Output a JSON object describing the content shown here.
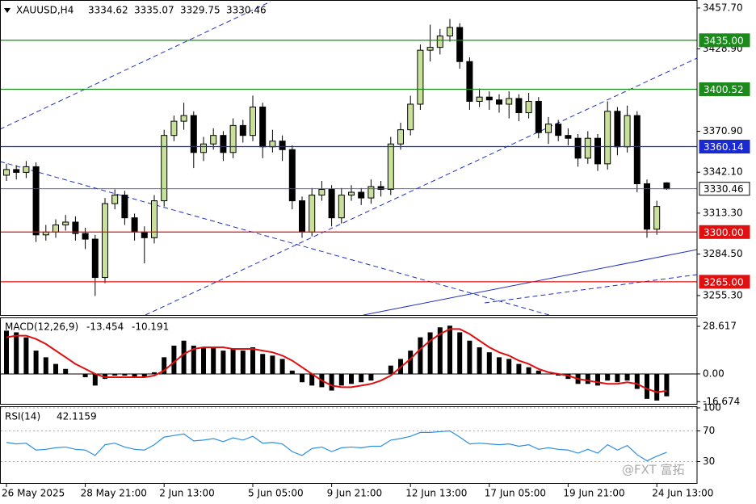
{
  "header": {
    "symbol": "XAUUSD,H4"
  },
  "watermark": "@FXT 富拓",
  "chart_data": [
    {
      "type": "candlestick",
      "categories": [
        "26 May 2025",
        null,
        null,
        null,
        null,
        null,
        null,
        null,
        "28 May 21:00",
        null,
        null,
        null,
        null,
        null,
        null,
        null,
        "2 Jun 13:00",
        null,
        null,
        null,
        null,
        null,
        null,
        null,
        null,
        "5 Jun 05:00",
        null,
        null,
        null,
        null,
        null,
        null,
        null,
        "9 Jun 21:00",
        null,
        null,
        null,
        null,
        null,
        null,
        null,
        "12 Jun 13:00",
        null,
        null,
        null,
        null,
        null,
        null,
        null,
        "17 Jun 05:00",
        null,
        null,
        null,
        null,
        null,
        null,
        null,
        "19 Jun 21:00",
        null,
        null,
        null,
        null,
        null,
        null,
        null,
        null,
        "24 Jun 13:00",
        null
      ],
      "open": [
        3340,
        3344,
        3342,
        3346,
        3298,
        3300,
        3305,
        3307,
        3299,
        3295,
        3268,
        3320,
        3326,
        3310,
        3300,
        3296,
        3322,
        3368,
        3378,
        3382,
        3356,
        3362,
        3368,
        3356,
        3375,
        3368,
        3388,
        3360,
        3364,
        3358,
        3322,
        3300,
        3326,
        3330,
        3310,
        3326,
        3328,
        3324,
        3332,
        3330,
        3362,
        3372,
        3390,
        3428,
        3430,
        3438,
        3444,
        3420,
        3392,
        3395,
        3393,
        3390,
        3394,
        3384,
        3392,
        3370,
        3376,
        3368,
        3366,
        3352,
        3366,
        3348,
        3385,
        3360,
        3382,
        3334,
        3302,
        3334.62
      ],
      "high": [
        3348,
        3347,
        3350,
        3349,
        3305,
        3309,
        3312,
        3311,
        3303,
        3298,
        3324,
        3330,
        3329,
        3313,
        3304,
        3326,
        3372,
        3382,
        3391,
        3385,
        3367,
        3373,
        3371,
        3380,
        3379,
        3396,
        3391,
        3372,
        3368,
        3361,
        3325,
        3331,
        3336,
        3333,
        3331,
        3333,
        3331,
        3337,
        3336,
        3367,
        3377,
        3396,
        3432,
        3446,
        3443,
        3450,
        3447,
        3423,
        3401,
        3399,
        3397,
        3399,
        3397,
        3398,
        3395,
        3381,
        3379,
        3373,
        3369,
        3371,
        3369,
        3392,
        3388,
        3389,
        3385,
        3337,
        3322,
        3335.07
      ],
      "low": [
        3336,
        3337,
        3338,
        3293,
        3294,
        3296,
        3301,
        3294,
        3288,
        3255,
        3264,
        3316,
        3305,
        3294,
        3278,
        3292,
        3318,
        3364,
        3372,
        3345,
        3350,
        3358,
        3350,
        3352,
        3363,
        3364,
        3352,
        3356,
        3350,
        3316,
        3296,
        3297,
        3322,
        3304,
        3306,
        3322,
        3319,
        3320,
        3325,
        3326,
        3358,
        3368,
        3386,
        3420,
        3425,
        3434,
        3415,
        3386,
        3388,
        3386,
        3384,
        3380,
        3378,
        3380,
        3366,
        3362,
        3364,
        3361,
        3346,
        3348,
        3343,
        3344,
        3354,
        3356,
        3328,
        3296,
        3298,
        3329.75
      ],
      "close": [
        3344,
        3342,
        3346,
        3298,
        3300,
        3305,
        3307,
        3299,
        3295,
        3268,
        3320,
        3326,
        3310,
        3300,
        3296,
        3322,
        3368,
        3378,
        3382,
        3356,
        3362,
        3368,
        3356,
        3375,
        3368,
        3388,
        3360,
        3364,
        3358,
        3322,
        3300,
        3326,
        3330,
        3310,
        3326,
        3328,
        3324,
        3332,
        3330,
        3362,
        3372,
        3390,
        3428,
        3430,
        3438,
        3444,
        3420,
        3392,
        3395,
        3393,
        3390,
        3394,
        3384,
        3392,
        3370,
        3376,
        3368,
        3366,
        3352,
        3366,
        3348,
        3385,
        3360,
        3382,
        3334,
        3302,
        3318,
        3330.46
      ],
      "up_color": "#c9e09a",
      "down_color": "#000000",
      "ylim": [
        3241.6,
        3462.2
      ],
      "yticks": [
        {
          "value": 3457.7,
          "label": "3457.70"
        },
        {
          "value": 3428.9,
          "label": "3428.90"
        },
        {
          "value": 3370.9,
          "label": "3370.90"
        },
        {
          "value": 3342.1,
          "label": "3342.10"
        },
        {
          "value": 3313.3,
          "label": "3313.30"
        },
        {
          "value": 3284.5,
          "label": "3284.50"
        },
        {
          "value": 3255.3,
          "label": "3255.30"
        }
      ],
      "levels": [
        {
          "value": 3435,
          "label": "3435.00",
          "color": "#1a8a1a"
        },
        {
          "value": 3400.52,
          "color": "#1a8a1a"
        },
        {
          "value": 3360.14,
          "color": "#1a2ad0"
        },
        {
          "value": 3330.46,
          "color": "#3a4ad8",
          "box": "#ffffff",
          "text_color": "#000000"
        },
        {
          "value": 3300,
          "label": "3300.00",
          "color": "#e01010"
        },
        {
          "value": 3265,
          "label": "3265.00",
          "color": "#e01010"
        }
      ]
    },
    {
      "type": "macd",
      "title": "MACD(12,26,9)",
      "histogram": [
        26,
        25,
        22,
        14,
        10,
        6,
        3,
        0,
        -2,
        -7,
        -3,
        -1,
        -1,
        -2,
        -2,
        1,
        10,
        17,
        20,
        17,
        16,
        16,
        14,
        15,
        14,
        16,
        12,
        11,
        9,
        2,
        -5,
        -7,
        -8,
        -10,
        -7,
        -6,
        -5,
        -4,
        0,
        5,
        9,
        14,
        22,
        25,
        28,
        29,
        25,
        20,
        16,
        13,
        10,
        9,
        6,
        4,
        2,
        0,
        -1,
        -3,
        -6,
        -6,
        -7,
        -4,
        -5,
        -4,
        -9,
        -15,
        -16,
        -13.454
      ],
      "signal": [
        22,
        23,
        23,
        21,
        18,
        14,
        10,
        6,
        3,
        0,
        -2,
        -2,
        -2,
        -2,
        -2,
        -1,
        2,
        7,
        12,
        15,
        16,
        16,
        16,
        15,
        15,
        15,
        14,
        13,
        11,
        8,
        4,
        0,
        -4,
        -7,
        -8,
        -8,
        -7,
        -6,
        -4,
        -1,
        4,
        9,
        15,
        20,
        24,
        27,
        27,
        24,
        20,
        16,
        13,
        11,
        8,
        6,
        3,
        1,
        0,
        -1,
        -3,
        -4,
        -5,
        -6,
        -6,
        -5,
        -6,
        -9,
        -11,
        -10.191
      ],
      "hist_color": "#000000",
      "signal_color": "#e01010",
      "ylim": [
        -18,
        33
      ],
      "yticks": [
        28.617,
        {
          "value": 0,
          "label": "0.00"
        },
        -16.674
      ]
    },
    {
      "type": "line",
      "title": "RSI(14)",
      "values": [
        55,
        53,
        54,
        45,
        46,
        48,
        49,
        46,
        45,
        38,
        52,
        54,
        49,
        46,
        45,
        52,
        62,
        64,
        66,
        57,
        58,
        60,
        56,
        61,
        58,
        63,
        54,
        55,
        53,
        43,
        38,
        47,
        49,
        43,
        48,
        49,
        48,
        50,
        50,
        58,
        60,
        63,
        68,
        68,
        69,
        70,
        62,
        53,
        54,
        53,
        52,
        53,
        50,
        52,
        46,
        48,
        46,
        45,
        41,
        46,
        41,
        52,
        45,
        51,
        39,
        31,
        37,
        42.1159
      ],
      "color": "#2d8fe0",
      "ylim": [
        0,
        100
      ],
      "yticks": [
        100,
        70,
        30
      ]
    }
  ]
}
